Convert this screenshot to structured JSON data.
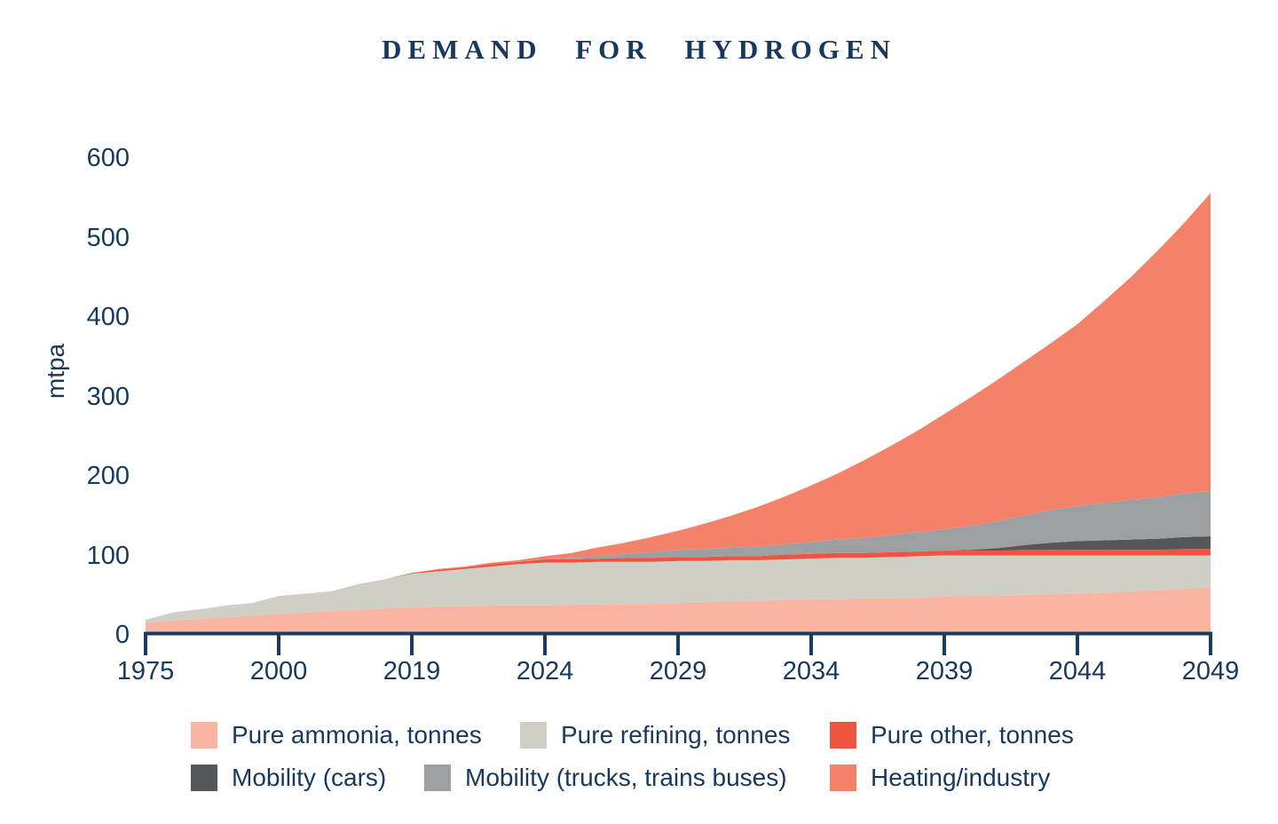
{
  "title": "DEMAND FOR HYDROGEN",
  "colors": {
    "text_navy": "#16395D",
    "axis_navy": "#1B3B5F",
    "background": "#FFFFFF"
  },
  "chart_data": {
    "type": "area",
    "stacked": true,
    "title": "DEMAND FOR HYDROGEN",
    "xlabel": "",
    "ylabel": "mtpa",
    "ylim": [
      0,
      600
    ],
    "yticks": [
      0,
      100,
      200,
      300,
      400,
      500,
      600
    ],
    "x_tick_labels": [
      "1975",
      "2000",
      "2019",
      "2024",
      "2029",
      "2034",
      "2039",
      "2044",
      "2049"
    ],
    "x_axis_type": "categorical-even-spacing",
    "grid": false,
    "legend_position": "bottom",
    "totals_at_ticks": [
      19,
      49,
      78,
      99,
      131,
      188,
      278,
      391,
      556
    ],
    "sample_t": [
      0,
      0.2,
      0.4,
      0.6,
      0.8,
      1,
      1.2,
      1.4,
      1.6,
      1.8,
      2,
      2.2,
      2.4,
      2.6,
      2.8,
      3,
      3.2,
      3.4,
      3.6,
      3.8,
      4,
      4.2,
      4.4,
      4.6,
      4.8,
      5,
      5.2,
      5.4,
      5.6,
      5.8,
      6,
      6.2,
      6.4,
      6.6,
      6.8,
      7,
      7.2,
      7.4,
      7.6,
      7.8,
      8
    ],
    "series": [
      {
        "id": "pure-ammonia",
        "name": "Pure ammonia, tonnes",
        "color": "#F9B4A2",
        "tick_values": [
          15,
          27,
          35,
          37,
          40,
          45,
          48,
          52,
          60
        ],
        "samples": [
          15,
          18,
          20,
          22,
          24,
          27,
          28,
          30,
          31,
          33,
          35,
          36,
          36,
          37,
          37,
          37,
          38,
          38,
          39,
          39,
          40,
          41,
          42,
          43,
          44,
          45,
          45,
          46,
          46,
          47,
          48,
          49,
          49,
          50,
          51,
          52,
          53,
          55,
          56,
          58,
          60
        ]
      },
      {
        "id": "pure-refining",
        "name": "Pure refining, tonnes",
        "color": "#D0CFC5",
        "tick_values": [
          4,
          22,
          42,
          54,
          53,
          51,
          52,
          48,
          40
        ],
        "samples": [
          4,
          10,
          12,
          15,
          16,
          22,
          24,
          25,
          33,
          37,
          42,
          44,
          47,
          49,
          52,
          54,
          53,
          54,
          53,
          53,
          53,
          52,
          52,
          51,
          51,
          51,
          52,
          51,
          52,
          52,
          52,
          51,
          51,
          50,
          49,
          48,
          47,
          45,
          44,
          42,
          40
        ]
      },
      {
        "id": "pure-other",
        "name": "Pure other, tonnes",
        "color": "#EE5440",
        "tick_values": [
          0,
          0,
          1,
          4,
          5,
          6,
          6,
          7,
          8
        ],
        "samples": [
          0,
          0,
          0,
          0,
          0,
          0,
          0,
          0,
          0,
          0,
          1,
          2,
          2,
          3,
          3,
          4,
          4,
          4,
          5,
          5,
          5,
          5,
          5,
          5,
          6,
          6,
          6,
          6,
          6,
          6,
          6,
          6,
          6,
          7,
          7,
          7,
          7,
          7,
          7,
          8,
          8
        ]
      },
      {
        "id": "mobility-cars",
        "name": "Mobility (cars)",
        "color": "#54575A",
        "tick_values": [
          0,
          0,
          0,
          0,
          0,
          0,
          0,
          11,
          16
        ],
        "samples": [
          0,
          0,
          0,
          0,
          0,
          0,
          0,
          0,
          0,
          0,
          0,
          0,
          0,
          0,
          0,
          0,
          0,
          0,
          0,
          0,
          0,
          0,
          0,
          0,
          0,
          0,
          0,
          0,
          0,
          0,
          0,
          1,
          3,
          6,
          9,
          11,
          12,
          13,
          14,
          15,
          16
        ]
      },
      {
        "id": "mobility-trucks",
        "name": "Mobility (trucks, trains buses)",
        "color": "#9CA0A2",
        "tick_values": [
          0,
          0,
          0,
          1,
          9,
          15,
          27,
          44,
          57
        ],
        "samples": [
          0,
          0,
          0,
          0,
          0,
          0,
          0,
          0,
          0,
          0,
          0,
          0,
          0,
          0,
          0,
          1,
          2,
          3,
          5,
          7,
          9,
          10,
          11,
          12,
          13,
          15,
          17,
          19,
          22,
          24,
          27,
          30,
          34,
          37,
          41,
          44,
          47,
          50,
          52,
          55,
          57
        ]
      },
      {
        "id": "heating-industry",
        "name": "Heating/industry",
        "color": "#F4826B",
        "tick_values": [
          0,
          0,
          0,
          3,
          24,
          71,
          145,
          229,
          375
        ],
        "samples": [
          0,
          0,
          0,
          0,
          0,
          0,
          0,
          0,
          0,
          0,
          0,
          1,
          1,
          2,
          2,
          3,
          6,
          11,
          14,
          19,
          24,
          32,
          40,
          50,
          60,
          71,
          83,
          98,
          112,
          128,
          145,
          162,
          178,
          194,
          210,
          229,
          254,
          280,
          310,
          340,
          375
        ]
      }
    ]
  },
  "legend": {
    "rows": [
      {
        "items": [
          {
            "label": "Pure ammonia, tonnes",
            "color": "#F9B4A2"
          },
          {
            "label": "Pure refining, tonnes",
            "color": "#D0CFC5"
          },
          {
            "label": "Pure other, tonnes",
            "color": "#EE5440"
          }
        ]
      },
      {
        "items": [
          {
            "label": "Mobility (cars)",
            "color": "#54575A"
          },
          {
            "label": "Mobility (trucks, trains buses)",
            "color": "#9CA0A2"
          },
          {
            "label": "Heating/industry",
            "color": "#F4826B"
          }
        ]
      }
    ]
  }
}
